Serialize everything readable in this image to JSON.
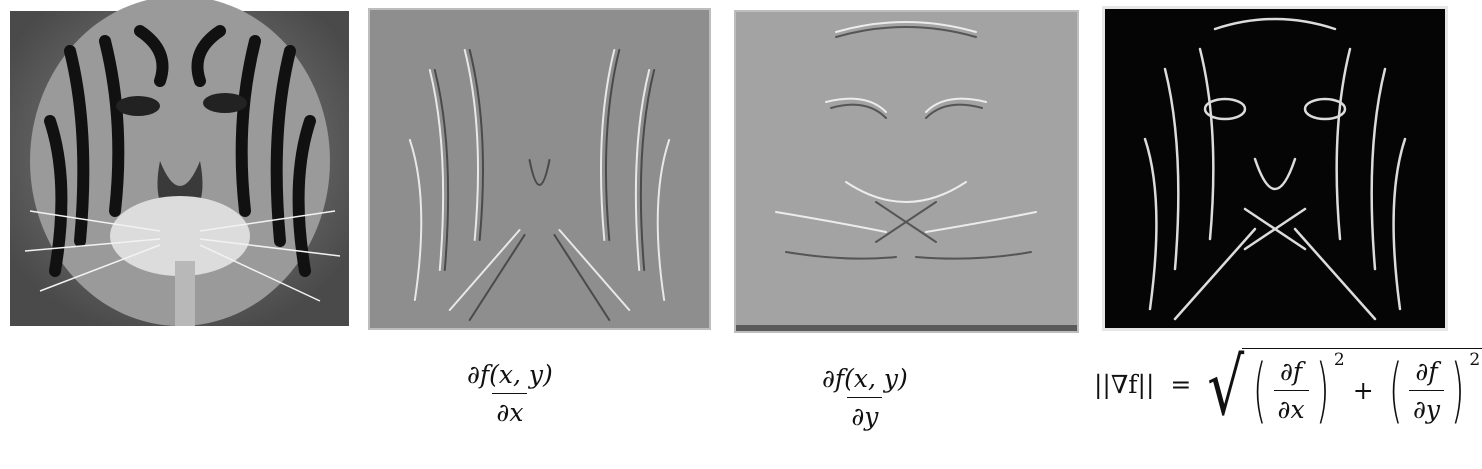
{
  "panels": [
    {
      "id": "original",
      "alt": "grayscale tiger face"
    },
    {
      "id": "dx",
      "alt": "horizontal derivative of tiger"
    },
    {
      "id": "dy",
      "alt": "vertical derivative of tiger"
    },
    {
      "id": "magnitude",
      "alt": "gradient magnitude of tiger"
    }
  ],
  "formulas": {
    "dx": {
      "numerator": "∂f(x, y)",
      "denominator": "∂x"
    },
    "dy": {
      "numerator": "∂f(x, y)",
      "denominator": "∂y"
    },
    "magnitude": {
      "lhs": "||∇f||",
      "equals": "=",
      "term1_num": "∂f",
      "term1_den": "∂x",
      "term2_num": "∂f",
      "term2_den": "∂y",
      "exponent1": "2",
      "exponent2": "2",
      "plus": "+"
    }
  },
  "colors": {
    "original_bg": "#6d6d6d",
    "dx_bg": "#8e8e8e",
    "dy_bg": "#a3a3a3",
    "mag_bg": "#050505"
  }
}
